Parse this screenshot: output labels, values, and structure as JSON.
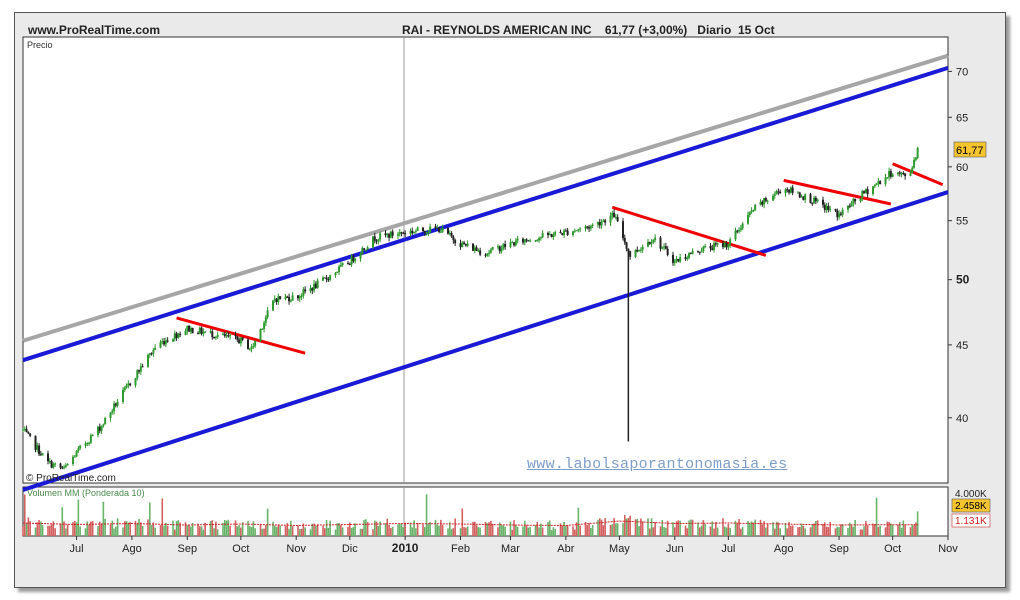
{
  "header": {
    "site": "www.ProRealTime.com",
    "title": "RAI - REYNOLDS AMERICAN INC    61,77 (+3,00%)   Diario  15 Oct"
  },
  "price_panel": {
    "label": "Precio",
    "copyright": "© ProRealTime.com",
    "last_price_tag": "61,77"
  },
  "watermark": "www.labolsaporantonomasia.es",
  "volume_panel": {
    "label": "Volumen MM (Ponderada 10)",
    "tick_4000": "4.000K",
    "tag_2458": "2.458K",
    "tag_1131": "1.131K"
  },
  "colors": {
    "up_candle": "#2f9a2f",
    "down_candle": "#222222",
    "channel": "#1a1ad6",
    "outer_channel": "#a6a6a6",
    "trend_lines": "#ee0000",
    "last_price_tag_bg": "#f5c530",
    "volume_up": "#6ab36a",
    "volume_down": "#d46060",
    "volume_mm": "#cc2222"
  },
  "chart_data": [
    {
      "type": "candlestick",
      "title": "RAI - REYNOLDS AMERICAN INC",
      "ylabel": "Precio",
      "y_ticks": [
        "40",
        "45",
        "50",
        "55",
        "60",
        "65",
        "70"
      ],
      "y_scale": "log",
      "ylim": [
        36,
        74
      ],
      "x_tick_labels": [
        "Jul",
        "Ago",
        "Sep",
        "Oct",
        "Nov",
        "Dic",
        "2010",
        "Feb",
        "Mar",
        "Abr",
        "May",
        "Jun",
        "Jul",
        "Ago",
        "Sep",
        "Oct",
        "Nov"
      ],
      "x_tick_dates": [
        "2009-07-01",
        "2009-08-01",
        "2009-09-01",
        "2009-10-01",
        "2009-11-01",
        "2009-12-01",
        "2010-01-01",
        "2010-02-01",
        "2010-03-01",
        "2010-04-01",
        "2010-05-01",
        "2010-06-01",
        "2010-07-01",
        "2010-08-01",
        "2010-09-01",
        "2010-10-01",
        "2010-11-01"
      ],
      "xlim": [
        "2009-06-01",
        "2010-11-01"
      ],
      "close_series": [
        [
          "2009-06-01",
          39.2
        ],
        [
          "2009-06-15",
          37.2
        ],
        [
          "2009-06-24",
          36.8
        ],
        [
          "2009-07-01",
          37.8
        ],
        [
          "2009-07-15",
          39.5
        ],
        [
          "2009-08-01",
          42.5
        ],
        [
          "2009-08-15",
          45.0
        ],
        [
          "2009-09-01",
          46.2
        ],
        [
          "2009-09-15",
          45.8
        ],
        [
          "2009-10-01",
          45.3
        ],
        [
          "2009-10-07",
          44.7
        ],
        [
          "2009-10-20",
          48.5
        ],
        [
          "2009-11-01",
          48.6
        ],
        [
          "2009-11-15",
          49.8
        ],
        [
          "2009-12-01",
          51.5
        ],
        [
          "2009-12-15",
          53.5
        ],
        [
          "2010-01-01",
          54.0
        ],
        [
          "2010-01-20",
          54.3
        ],
        [
          "2010-02-01",
          53.0
        ],
        [
          "2010-02-15",
          52.2
        ],
        [
          "2010-03-01",
          53.0
        ],
        [
          "2010-03-15",
          53.5
        ],
        [
          "2010-04-01",
          54.0
        ],
        [
          "2010-04-15",
          54.5
        ],
        [
          "2010-04-28",
          55.5
        ],
        [
          "2010-05-07",
          52.0
        ],
        [
          "2010-05-20",
          53.5
        ],
        [
          "2010-06-01",
          51.5
        ],
        [
          "2010-06-15",
          52.5
        ],
        [
          "2010-07-01",
          53.0
        ],
        [
          "2010-07-15",
          56.0
        ],
        [
          "2010-08-01",
          58.0
        ],
        [
          "2010-08-15",
          57.0
        ],
        [
          "2010-09-01",
          55.5
        ],
        [
          "2010-09-15",
          57.5
        ],
        [
          "2010-10-01",
          59.5
        ],
        [
          "2010-10-10",
          59.0
        ],
        [
          "2010-10-15",
          61.77
        ]
      ],
      "spike_low": {
        "date": "2010-05-06",
        "low": 38.5
      },
      "last_price": 61.77,
      "trend_lines": [
        {
          "name": "channel-upper",
          "color": "#1a1ad6",
          "from": [
            "2009-06-01",
            43.9
          ],
          "to": [
            "2010-11-01",
            70.4
          ]
        },
        {
          "name": "channel-lower",
          "color": "#1a1ad6",
          "from": [
            "2009-06-01",
            35.6
          ],
          "to": [
            "2010-11-01",
            57.6
          ]
        },
        {
          "name": "outer-line",
          "color": "#a6a6a6",
          "from": [
            "2009-06-01",
            45.3
          ],
          "to": [
            "2010-11-01",
            71.8
          ]
        },
        {
          "name": "trend-1",
          "color": "#ee0000",
          "from": [
            "2009-08-26",
            47.0
          ],
          "to": [
            "2009-11-06",
            44.4
          ]
        },
        {
          "name": "trend-2",
          "color": "#ee0000",
          "from": [
            "2010-04-27",
            56.2
          ],
          "to": [
            "2010-07-22",
            52.0
          ]
        },
        {
          "name": "trend-3",
          "color": "#ee0000",
          "from": [
            "2010-08-01",
            58.7
          ],
          "to": [
            "2010-09-30",
            56.5
          ]
        },
        {
          "name": "trend-4",
          "color": "#ee0000",
          "from": [
            "2010-10-01",
            60.3
          ],
          "to": [
            "2010-10-29",
            58.3
          ]
        }
      ]
    },
    {
      "type": "bar",
      "title": "Volumen MM (Ponderada 10)",
      "y_ticks": [
        "4.000K"
      ],
      "ylim": [
        0,
        4900
      ],
      "moving_average_last": 1131,
      "last_volume": 2458,
      "volume_series": [
        [
          "2009-06-01",
          1300
        ],
        [
          "2009-07-01",
          1150
        ],
        [
          "2009-08-01",
          1250
        ],
        [
          "2009-09-01",
          1100
        ],
        [
          "2009-10-01",
          1200
        ],
        [
          "2009-11-01",
          1050
        ],
        [
          "2009-12-01",
          1150
        ],
        [
          "2010-01-01",
          1250
        ],
        [
          "2010-02-01",
          1200
        ],
        [
          "2010-03-01",
          1100
        ],
        [
          "2010-04-01",
          1050
        ],
        [
          "2010-05-01",
          1500
        ],
        [
          "2010-06-01",
          1250
        ],
        [
          "2010-07-01",
          1300
        ],
        [
          "2010-08-01",
          1200
        ],
        [
          "2010-09-01",
          1100
        ],
        [
          "2010-10-01",
          1131
        ]
      ]
    }
  ]
}
